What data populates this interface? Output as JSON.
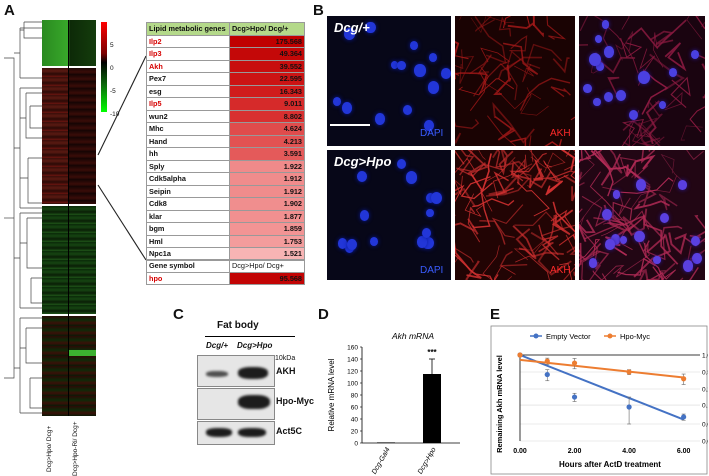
{
  "panels": {
    "a": "A",
    "b": "B",
    "c": "C",
    "d": "D",
    "e": "E"
  },
  "panel_a": {
    "scale": {
      "ticks": [
        "5",
        "0",
        "-5",
        "-10"
      ]
    },
    "col_labels": [
      "Dcg>Hpo/ Dcg+",
      "Dcg>Hpo-Ri/ Dcg+"
    ],
    "table": {
      "header": [
        "Lipid metabolic genes",
        "Dcg>Hpo/ Dcg/+"
      ],
      "rows": [
        {
          "gene": "Ilp2",
          "value": "175.568",
          "red_text": true,
          "shade": "#c00000"
        },
        {
          "gene": "Ilp3",
          "value": "49.364",
          "red_text": true,
          "shade": "#c40808"
        },
        {
          "gene": "Akh",
          "value": "39.552",
          "red_text": true,
          "shade": "#c80e0e"
        },
        {
          "gene": "Pex7",
          "value": "22.595",
          "red_text": false,
          "shade": "#cc1414"
        },
        {
          "gene": "esg",
          "value": "16.343",
          "red_text": false,
          "shade": "#d01c1c"
        },
        {
          "gene": "Ilp5",
          "value": "9.011",
          "red_text": true,
          "shade": "#d62a2a"
        },
        {
          "gene": "wun2",
          "value": "8.802",
          "red_text": false,
          "shade": "#d83030"
        },
        {
          "gene": "Mhc",
          "value": "4.624",
          "red_text": false,
          "shade": "#e04c4c"
        },
        {
          "gene": "Hand",
          "value": "4.213",
          "red_text": false,
          "shade": "#e25252"
        },
        {
          "gene": "hh",
          "value": "3.591",
          "red_text": false,
          "shade": "#e45a5a"
        },
        {
          "gene": "Sply",
          "value": "1.922",
          "red_text": false,
          "shade": "#f08a8a"
        },
        {
          "gene": "Cdk5alpha",
          "value": "1.912",
          "red_text": false,
          "shade": "#f08c8c"
        },
        {
          "gene": "Seipin",
          "value": "1.912",
          "red_text": false,
          "shade": "#f08c8c"
        },
        {
          "gene": "Cdk8",
          "value": "1.902",
          "red_text": false,
          "shade": "#f08e8e"
        },
        {
          "gene": "klar",
          "value": "1.877",
          "red_text": false,
          "shade": "#f19090"
        },
        {
          "gene": "bgm",
          "value": "1.859",
          "red_text": false,
          "shade": "#f29494"
        },
        {
          "gene": "Hml",
          "value": "1.753",
          "red_text": false,
          "shade": "#f39c9c"
        },
        {
          "gene": "Npc1a",
          "value": "1.521",
          "red_text": false,
          "shade": "#f7b4b4"
        }
      ],
      "gene_symbol_header": [
        "Gene symbol",
        "Dcg>Hpo/ Dcg+"
      ],
      "gene_symbol_row": {
        "gene": "hpo",
        "value": "95.568",
        "red_text": true,
        "shade": "#c20404"
      }
    }
  },
  "panel_b": {
    "row1_label": "Dcg/+",
    "row2_label": "Dcg>Hpo",
    "dapi": "DAPI",
    "akh": "AKH"
  },
  "panel_c": {
    "title": "Fat body",
    "lanes": [
      "Dcg/+",
      "Dcg>Hpo"
    ],
    "marker": "10kDa",
    "rows": [
      "AKH",
      "Hpo-Myc",
      "Act5C"
    ]
  },
  "panel_d": {
    "chart_data": {
      "type": "bar",
      "title": "Akh mRNA",
      "categories": [
        "Dcg-Gal4",
        "Dcg>Hpo"
      ],
      "values": [
        1,
        115
      ],
      "error": [
        0,
        25
      ],
      "ylabel": "Relative mRNA level",
      "ylim": [
        0,
        160
      ],
      "yticks": [
        "0",
        "20",
        "40",
        "60",
        "80",
        "100",
        "120",
        "140",
        "160"
      ],
      "annotation": "***"
    }
  },
  "panel_e": {
    "chart_data": {
      "type": "scatter",
      "ylabel": "Remaining Akh mRNA level",
      "xlabel": "Hours after ActD treatment",
      "xticks": [
        "0.00",
        "2.00",
        "4.00",
        "6.00"
      ],
      "yticks": [
        "1.00",
        "0.50",
        "0.25",
        "0.13",
        "0.06",
        "0.03"
      ],
      "yscale": "log2",
      "xlim": [
        0,
        6.6
      ],
      "ylim": [
        0.03,
        1.0
      ],
      "legend": "top",
      "series": [
        {
          "name": "Empty Vector",
          "color": "#4472c4",
          "x": [
            0,
            1,
            2,
            4,
            6
          ],
          "y": [
            1.0,
            0.45,
            0.18,
            0.12,
            0.08
          ],
          "err": [
            0,
            0.1,
            0.03,
            0.06,
            0.01
          ]
        },
        {
          "name": "Hpo-Myc",
          "color": "#ed7d31",
          "x": [
            0,
            1,
            2,
            4,
            6
          ],
          "y": [
            1.0,
            0.78,
            0.72,
            0.5,
            0.38
          ],
          "err": [
            0,
            0.1,
            0.15,
            0.05,
            0.08
          ]
        }
      ],
      "fits": [
        {
          "series": "Empty Vector",
          "x": [
            0,
            6
          ],
          "y": [
            1.0,
            0.072
          ]
        },
        {
          "series": "Hpo-Myc",
          "x": [
            0,
            6
          ],
          "y": [
            0.82,
            0.4
          ]
        }
      ]
    }
  }
}
